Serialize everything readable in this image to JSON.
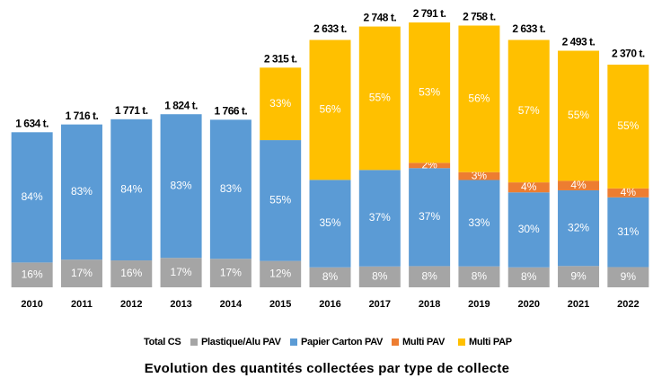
{
  "chart_data": {
    "type": "bar",
    "stacked": true,
    "title": "Evolution des quantités collectées par type de collecte",
    "categories": [
      "2010",
      "2011",
      "2012",
      "2013",
      "2014",
      "2015",
      "2016",
      "2017",
      "2018",
      "2019",
      "2020",
      "2021",
      "2022"
    ],
    "total": {
      "name": "Total CS",
      "values": [
        1634,
        1716,
        1771,
        1824,
        1766,
        2315,
        2633,
        2748,
        2791,
        2758,
        2633,
        2493,
        2370
      ],
      "value_labels": [
        "1 634 t.",
        "1 716 t.",
        "1 771 t.",
        "1 824 t.",
        "1 766 t.",
        "2 315 t.",
        "2 633 t.",
        "2 748 t.",
        "2 791 t.",
        "2 758 t.",
        "2 633 t.",
        "2 493 t.",
        "2 370 t."
      ]
    },
    "series": [
      {
        "name": "Plastique/Alu PAV",
        "color": "#a5a5a5",
        "values": [
          16,
          17,
          16,
          17,
          17,
          12,
          8,
          8,
          8,
          8,
          8,
          9,
          9
        ],
        "value_labels": [
          "16%",
          "17%",
          "16%",
          "17%",
          "17%",
          "12%",
          "8%",
          "8%",
          "8%",
          "8%",
          "8%",
          "9%",
          "9%"
        ]
      },
      {
        "name": "Papier Carton PAV",
        "color": "#5b9bd5",
        "values": [
          84,
          83,
          84,
          83,
          83,
          55,
          35,
          37,
          37,
          33,
          30,
          32,
          31
        ],
        "value_labels": [
          "84%",
          "83%",
          "84%",
          "83%",
          "83%",
          "55%",
          "35%",
          "37%",
          "37%",
          "33%",
          "30%",
          "32%",
          "31%"
        ]
      },
      {
        "name": "Multi PAV",
        "color": "#ed7d31",
        "values": [
          null,
          null,
          null,
          null,
          null,
          null,
          null,
          null,
          2,
          3,
          4,
          4,
          4
        ],
        "value_labels": [
          null,
          null,
          null,
          null,
          null,
          null,
          null,
          null,
          "2%",
          "3%",
          "4%",
          "4%",
          "4%"
        ]
      },
      {
        "name": "Multi PAP",
        "color": "#ffc000",
        "values": [
          null,
          null,
          null,
          null,
          null,
          33,
          56,
          55,
          53,
          56,
          57,
          55,
          55
        ],
        "value_labels": [
          null,
          null,
          null,
          null,
          null,
          "33%",
          "56%",
          "55%",
          "53%",
          "56%",
          "57%",
          "55%",
          "55%"
        ]
      }
    ]
  }
}
